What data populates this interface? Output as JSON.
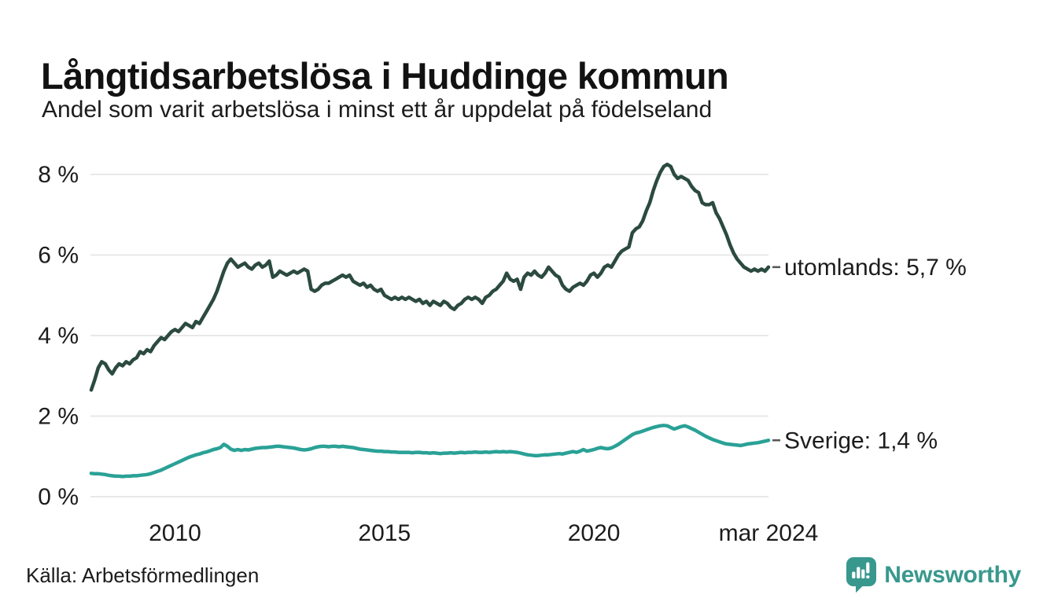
{
  "header": {
    "title": "Långtidsarbetslösa i Huddinge kommun",
    "subtitle": "Andel som varit arbetslösa i minst ett år uppdelat på födelseland"
  },
  "footer": {
    "source": "Källa: Arbetsförmedlingen"
  },
  "branding": {
    "name": "Newsworthy",
    "icon": "bar-chart-pin-icon",
    "color": "#38988e"
  },
  "colors": {
    "utomlands_line": "#2b4a40",
    "sverige_line": "#2aa196",
    "gridline": "#e8e8e8",
    "text": "#1c1c1c",
    "label_dash": "#555555"
  },
  "chart_data": {
    "type": "line",
    "title": "Långtidsarbetslösa i Huddinge kommun",
    "subtitle": "Andel som varit arbetslösa i minst ett år uppdelat på födelseland",
    "unit": "%",
    "grid": true,
    "legend_position": "end-of-line",
    "x_start": "2008-01",
    "x_end": "2024-03",
    "points_per_year": 12,
    "ylim": [
      0,
      8.6
    ],
    "y_ticks": [
      {
        "value": 8,
        "label": "8 %"
      },
      {
        "value": 6,
        "label": "6 %"
      },
      {
        "value": 4,
        "label": "4 %"
      },
      {
        "value": 2,
        "label": "2 %"
      },
      {
        "value": 0,
        "label": "0 %"
      }
    ],
    "x_ticks": [
      {
        "year": 2010,
        "label": "2010"
      },
      {
        "year": 2015,
        "label": "2015"
      },
      {
        "year": 2020,
        "label": "2020"
      },
      {
        "year": 2024.1667,
        "label": "mar 2024"
      }
    ],
    "series": [
      {
        "name": "utomlands",
        "end_label": "utomlands: 5,7 %",
        "end_value": 5.7,
        "color": "#2b4a40",
        "values": [
          2.65,
          2.9,
          3.2,
          3.35,
          3.3,
          3.15,
          3.05,
          3.2,
          3.3,
          3.25,
          3.35,
          3.3,
          3.4,
          3.45,
          3.6,
          3.55,
          3.65,
          3.6,
          3.75,
          3.85,
          3.95,
          3.9,
          4.0,
          4.1,
          4.15,
          4.1,
          4.2,
          4.3,
          4.25,
          4.2,
          4.35,
          4.3,
          4.45,
          4.6,
          4.75,
          4.9,
          5.1,
          5.35,
          5.6,
          5.8,
          5.9,
          5.8,
          5.7,
          5.75,
          5.8,
          5.7,
          5.65,
          5.75,
          5.8,
          5.7,
          5.75,
          5.85,
          5.45,
          5.5,
          5.6,
          5.55,
          5.5,
          5.55,
          5.6,
          5.55,
          5.6,
          5.65,
          5.6,
          5.15,
          5.1,
          5.15,
          5.25,
          5.3,
          5.3,
          5.35,
          5.4,
          5.45,
          5.5,
          5.45,
          5.5,
          5.35,
          5.3,
          5.25,
          5.3,
          5.2,
          5.25,
          5.15,
          5.1,
          5.15,
          5.0,
          4.95,
          4.9,
          4.95,
          4.9,
          4.95,
          4.9,
          4.95,
          4.9,
          4.85,
          4.9,
          4.8,
          4.85,
          4.75,
          4.85,
          4.8,
          4.75,
          4.85,
          4.8,
          4.7,
          4.65,
          4.75,
          4.8,
          4.9,
          4.95,
          4.9,
          4.95,
          4.9,
          4.8,
          4.95,
          5.0,
          5.1,
          5.15,
          5.25,
          5.35,
          5.55,
          5.4,
          5.35,
          5.4,
          5.15,
          5.45,
          5.55,
          5.5,
          5.6,
          5.5,
          5.45,
          5.55,
          5.7,
          5.6,
          5.5,
          5.45,
          5.25,
          5.15,
          5.1,
          5.2,
          5.25,
          5.3,
          5.25,
          5.35,
          5.5,
          5.55,
          5.45,
          5.55,
          5.7,
          5.75,
          5.7,
          5.85,
          6.0,
          6.1,
          6.15,
          6.2,
          6.55,
          6.65,
          6.7,
          6.85,
          7.1,
          7.3,
          7.6,
          7.85,
          8.05,
          8.2,
          8.25,
          8.2,
          8.0,
          7.9,
          7.95,
          7.9,
          7.85,
          7.7,
          7.6,
          7.55,
          7.3,
          7.25,
          7.25,
          7.3,
          7.05,
          6.9,
          6.7,
          6.5,
          6.25,
          6.05,
          5.9,
          5.8,
          5.7,
          5.65,
          5.6,
          5.65,
          5.6,
          5.65,
          5.6,
          5.7
        ]
      },
      {
        "name": "Sverige",
        "end_label": "Sverige: 1,4 %",
        "end_value": 1.4,
        "color": "#2aa196",
        "values": [
          0.58,
          0.57,
          0.57,
          0.56,
          0.55,
          0.53,
          0.52,
          0.51,
          0.51,
          0.5,
          0.51,
          0.51,
          0.52,
          0.52,
          0.53,
          0.54,
          0.55,
          0.57,
          0.6,
          0.63,
          0.66,
          0.7,
          0.74,
          0.78,
          0.82,
          0.86,
          0.9,
          0.94,
          0.98,
          1.01,
          1.04,
          1.06,
          1.09,
          1.11,
          1.14,
          1.17,
          1.19,
          1.22,
          1.3,
          1.25,
          1.18,
          1.15,
          1.17,
          1.15,
          1.17,
          1.16,
          1.18,
          1.2,
          1.21,
          1.22,
          1.22,
          1.23,
          1.24,
          1.25,
          1.25,
          1.24,
          1.23,
          1.22,
          1.21,
          1.19,
          1.17,
          1.16,
          1.17,
          1.19,
          1.22,
          1.24,
          1.25,
          1.25,
          1.24,
          1.25,
          1.25,
          1.24,
          1.25,
          1.24,
          1.23,
          1.22,
          1.2,
          1.18,
          1.17,
          1.16,
          1.15,
          1.14,
          1.13,
          1.13,
          1.12,
          1.12,
          1.11,
          1.11,
          1.1,
          1.1,
          1.1,
          1.1,
          1.09,
          1.1,
          1.1,
          1.09,
          1.09,
          1.08,
          1.09,
          1.08,
          1.07,
          1.08,
          1.08,
          1.09,
          1.08,
          1.09,
          1.1,
          1.09,
          1.1,
          1.1,
          1.11,
          1.1,
          1.1,
          1.11,
          1.1,
          1.11,
          1.12,
          1.11,
          1.12,
          1.11,
          1.12,
          1.11,
          1.1,
          1.08,
          1.06,
          1.04,
          1.03,
          1.02,
          1.02,
          1.03,
          1.04,
          1.04,
          1.05,
          1.06,
          1.07,
          1.06,
          1.08,
          1.1,
          1.12,
          1.1,
          1.13,
          1.17,
          1.13,
          1.15,
          1.17,
          1.2,
          1.22,
          1.2,
          1.19,
          1.21,
          1.25,
          1.3,
          1.36,
          1.42,
          1.48,
          1.54,
          1.58,
          1.6,
          1.63,
          1.66,
          1.69,
          1.72,
          1.74,
          1.76,
          1.77,
          1.76,
          1.72,
          1.68,
          1.71,
          1.74,
          1.76,
          1.73,
          1.69,
          1.65,
          1.6,
          1.55,
          1.5,
          1.46,
          1.42,
          1.39,
          1.36,
          1.33,
          1.31,
          1.3,
          1.29,
          1.28,
          1.27,
          1.29,
          1.31,
          1.32,
          1.33,
          1.34,
          1.36,
          1.38,
          1.4
        ]
      }
    ]
  }
}
